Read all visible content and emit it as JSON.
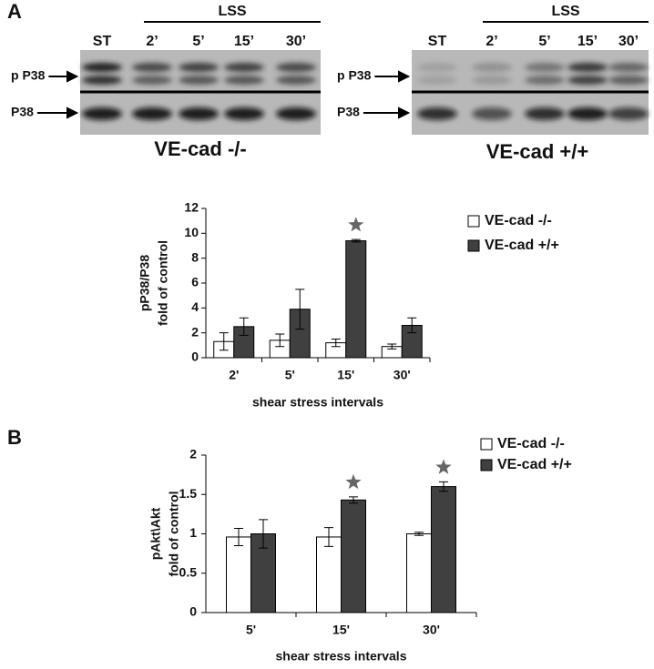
{
  "panels": [
    "A",
    "B"
  ],
  "blots": [
    {
      "lss_label": "LSS",
      "lanes": [
        "ST",
        "2’",
        "5’",
        "15’",
        "30’"
      ],
      "rows": [
        "p P38",
        "P38"
      ],
      "title": "VE-cad -/-"
    },
    {
      "lss_label": "LSS",
      "lanes": [
        "ST",
        "2’",
        "5’",
        "15’",
        "30’"
      ],
      "rows": [
        "p P38",
        "P38"
      ],
      "title": "VE-cad +/+"
    }
  ],
  "chart_data": [
    {
      "type": "bar",
      "ylabel": [
        "pP38/P38",
        "fold of control"
      ],
      "xlabel": "shear stress intervals",
      "categories": [
        "2'",
        "5'",
        "15'",
        "30'"
      ],
      "series": [
        {
          "name": "VE-cad -/-",
          "color": "#ffffff",
          "values": [
            1.3,
            1.4,
            1.2,
            0.9
          ],
          "errors": [
            0.7,
            0.5,
            0.3,
            0.2
          ],
          "significant": [
            false,
            false,
            false,
            false
          ]
        },
        {
          "name": "VE-cad +/+",
          "color": "#404040",
          "values": [
            2.5,
            3.9,
            9.4,
            2.6
          ],
          "errors": [
            0.7,
            1.6,
            0.1,
            0.6
          ],
          "significant": [
            false,
            false,
            true,
            false
          ]
        }
      ],
      "ylim": [
        0,
        12
      ],
      "yticks": [
        0,
        2,
        4,
        6,
        8,
        10,
        12
      ],
      "grid": false,
      "legend": "upper right"
    },
    {
      "type": "bar",
      "ylabel": [
        "pAkt\\Akt",
        "fold of control"
      ],
      "xlabel": "shear stress intervals",
      "categories": [
        "5'",
        "15'",
        "30'"
      ],
      "series": [
        {
          "name": "VE-cad -/-",
          "color": "#ffffff",
          "values": [
            0.96,
            0.96,
            1.0
          ],
          "errors": [
            0.11,
            0.12,
            0.02
          ],
          "significant": [
            false,
            false,
            false
          ]
        },
        {
          "name": "VE-cad +/+",
          "color": "#404040",
          "values": [
            1.0,
            1.43,
            1.6
          ],
          "errors": [
            0.18,
            0.04,
            0.06
          ],
          "significant": [
            false,
            true,
            true
          ]
        }
      ],
      "ylim": [
        0,
        2
      ],
      "yticks": [
        0,
        0.5,
        1,
        1.5,
        2
      ],
      "grid": false,
      "legend": "upper right"
    }
  ]
}
